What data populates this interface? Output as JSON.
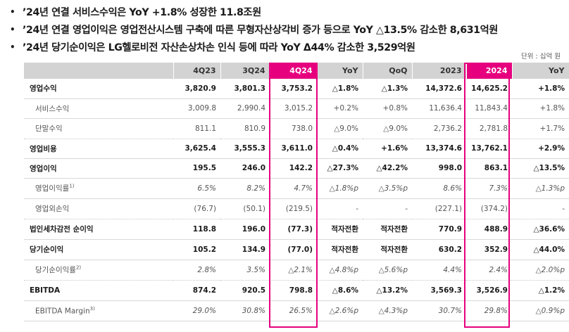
{
  "bullets": [
    "’24년 연결 서비스수익은 YoY +1.8% 성장한 11.8조원",
    "’24년 연결 영업이익은 영업전산시스템 구축에 따른 무형자산상각비 증가 등으로 YoY △13.5% 감소한 8,631억원",
    "’24년 당기순이익은 LG헬로비전 자산손상차손 인식 등에 따라 YoY Δ44% 감소한 3,529억원"
  ],
  "bullet_symbol": "•",
  "unit": "단위 : 십억 원",
  "table": {
    "headers": [
      "",
      "4Q23",
      "3Q24",
      "4Q24",
      "YoY",
      "QoQ",
      "2023",
      "2024",
      "YoY"
    ],
    "highlight_color": "#e6007e",
    "rows": [
      {
        "label": "영업수익",
        "sup": "",
        "values": [
          "3,820.9",
          "3,801.3",
          "3,753.2",
          "△1.8%",
          "△1.3%",
          "14,372.6",
          "14,625.2",
          "+1.8%"
        ]
      },
      {
        "label": "서비스수익",
        "sup": "",
        "values": [
          "3,009.8",
          "2,990.4",
          "3,015.2",
          "+0.2%",
          "+0.8%",
          "11,636.4",
          "11,843.4",
          "+1.8%"
        ]
      },
      {
        "label": "단말수익",
        "sup": "",
        "values": [
          "811.1",
          "810.9",
          "738.0",
          "△9.0%",
          "△9.0%",
          "2,736.2",
          "2,781.8",
          "+1.7%"
        ]
      },
      {
        "label": "영업비용",
        "sup": "",
        "values": [
          "3,625.4",
          "3,555.3",
          "3,611.0",
          "△0.4%",
          "+1.6%",
          "13,374.6",
          "13,762.1",
          "+2.9%"
        ]
      },
      {
        "label": "영업이익",
        "sup": "",
        "values": [
          "195.5",
          "246.0",
          "142.2",
          "△27.3%",
          "△42.2%",
          "998.0",
          "863.1",
          "△13.5%"
        ]
      },
      {
        "label": "영업이익률",
        "sup": "1)",
        "values": [
          "6.5%",
          "8.2%",
          "4.7%",
          "△1.8%p",
          "△3.5%p",
          "8.6%",
          "7.3%",
          "△1.3%p"
        ]
      },
      {
        "label": "영업외손익",
        "sup": "",
        "values": [
          "(76.7)",
          "(50.1)",
          "(219.5)",
          "-",
          "-",
          "(227.1)",
          "(374.2)",
          "-"
        ]
      },
      {
        "label": "법인세차감전 순이익",
        "sup": "",
        "values": [
          "118.8",
          "196.0",
          "(77.3)",
          "적자전환",
          "적자전환",
          "770.9",
          "488.9",
          "△36.6%"
        ]
      },
      {
        "label": "당기순이익",
        "sup": "",
        "values": [
          "105.2",
          "134.9",
          "(77.0)",
          "적자전환",
          "적자전환",
          "630.2",
          "352.9",
          "△44.0%"
        ]
      },
      {
        "label": "당기순이익률",
        "sup": "2)",
        "values": [
          "2.8%",
          "3.5%",
          "△2.1%",
          "△4.8%p",
          "△5.6%p",
          "4.4%",
          "2.4%",
          "△2.0%p"
        ]
      },
      {
        "label": "EBITDA",
        "sup": "",
        "values": [
          "874.2",
          "920.5",
          "798.8",
          "△8.6%",
          "△13.2%",
          "3,569.3",
          "3,526.9",
          "△1.2%"
        ]
      },
      {
        "label": "EBITDA Margin",
        "sup": "3)",
        "values": [
          "29.0%",
          "30.8%",
          "26.5%",
          "△2.6%p",
          "△4.3%p",
          "30.7%",
          "29.8%",
          "△0.9%p"
        ]
      }
    ]
  }
}
